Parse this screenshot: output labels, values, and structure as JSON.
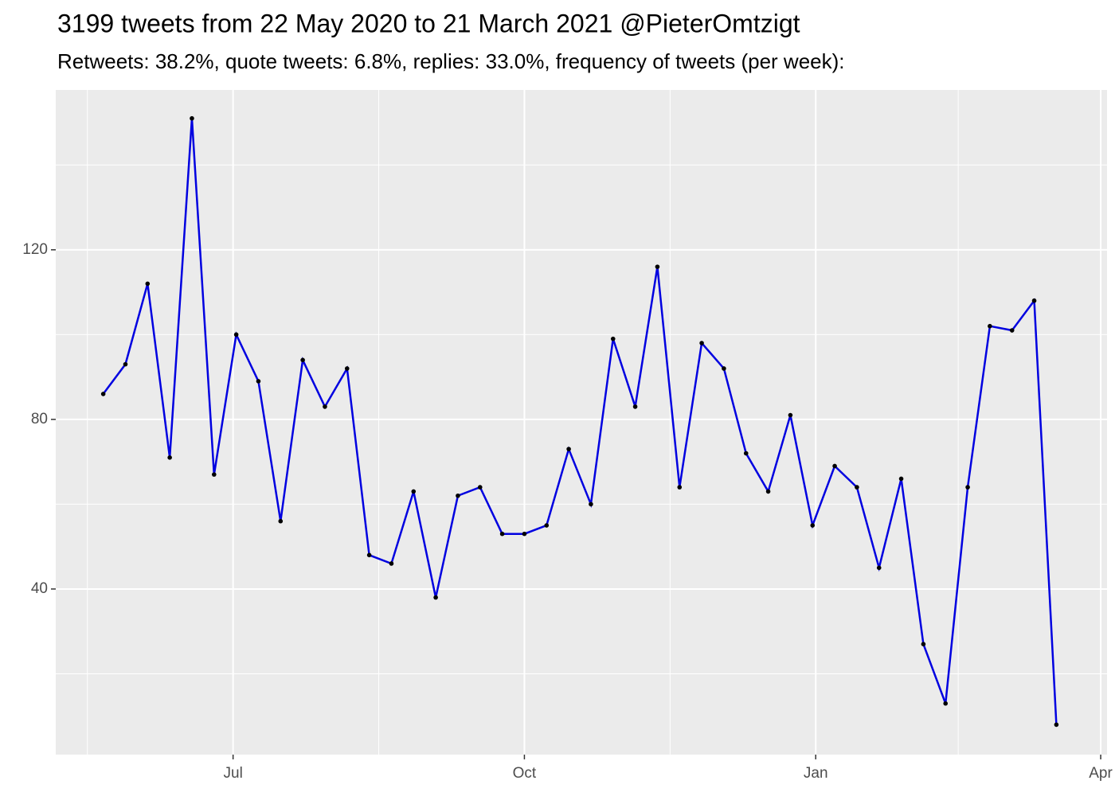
{
  "chart_data": {
    "type": "line",
    "title": "3199 tweets from 22 May 2020 to 21 March 2021 @PieterOmtzigt",
    "subtitle": "Retweets: 38.2%, quote tweets: 6.8%, replies: 33.0%, frequency of tweets (per week):",
    "x": [
      "2020-05-21",
      "2020-05-28",
      "2020-06-04",
      "2020-06-11",
      "2020-06-18",
      "2020-06-25",
      "2020-07-02",
      "2020-07-09",
      "2020-07-16",
      "2020-07-23",
      "2020-07-30",
      "2020-08-06",
      "2020-08-13",
      "2020-08-20",
      "2020-08-27",
      "2020-09-03",
      "2020-09-10",
      "2020-09-17",
      "2020-09-24",
      "2020-10-01",
      "2020-10-08",
      "2020-10-15",
      "2020-10-22",
      "2020-10-29",
      "2020-11-05",
      "2020-11-12",
      "2020-11-19",
      "2020-11-26",
      "2020-12-03",
      "2020-12-10",
      "2020-12-17",
      "2020-12-24",
      "2020-12-31",
      "2021-01-07",
      "2021-01-14",
      "2021-01-21",
      "2021-01-28",
      "2021-02-04",
      "2021-02-11",
      "2021-02-18",
      "2021-02-25",
      "2021-03-04",
      "2021-03-11",
      "2021-03-18"
    ],
    "series": [
      {
        "color": "#0000e0",
        "values": [
          86,
          93,
          112,
          71,
          151,
          67,
          100,
          89,
          56,
          94,
          83,
          92,
          48,
          46,
          63,
          38,
          62,
          64,
          53,
          53,
          55,
          73,
          60,
          99,
          83,
          116,
          64,
          98,
          92,
          72,
          63,
          81,
          55,
          69,
          64,
          45,
          66,
          27,
          13,
          64,
          102,
          101,
          108,
          8
        ]
      }
    ],
    "point_color": "#000000",
    "xlim": [
      "2020-05-06",
      "2021-04-03"
    ],
    "xticks": [
      {
        "value": "2020-07-01",
        "label": "Jul"
      },
      {
        "value": "2020-10-01",
        "label": "Oct"
      },
      {
        "value": "2021-01-01",
        "label": "Jan"
      },
      {
        "value": "2021-04-01",
        "label": "Apr"
      }
    ],
    "x_minor_ticks": [
      "2020-05-16",
      "2020-08-16",
      "2020-11-16",
      "2021-02-15"
    ],
    "ylim": [
      0.94,
      157.7
    ],
    "yticks": [
      40,
      80,
      120
    ],
    "y_minor_ticks": [
      20,
      60,
      100,
      140
    ],
    "grid": true
  }
}
